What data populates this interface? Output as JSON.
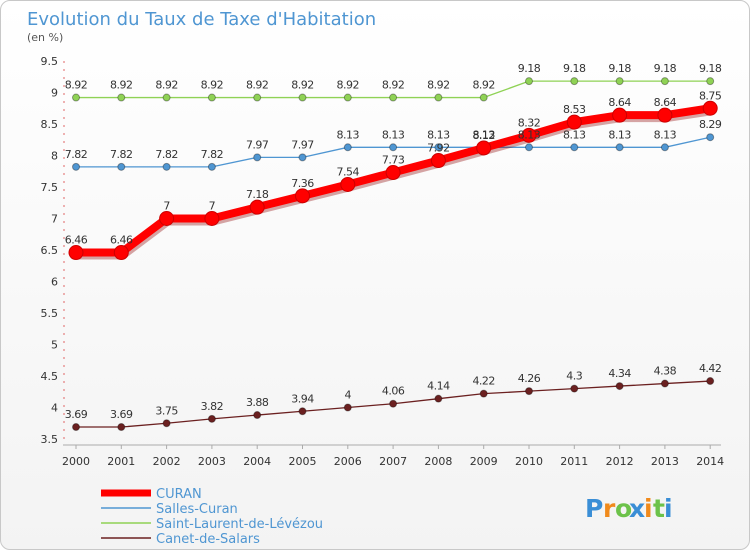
{
  "chart_data": {
    "type": "line",
    "title": "Evolution du Taux de Taxe d'Habitation",
    "subtitle": "(en %)",
    "x": [
      "2000",
      "2001",
      "2002",
      "2003",
      "2004",
      "2005",
      "2006",
      "2007",
      "2008",
      "2009",
      "2010",
      "2011",
      "2012",
      "2013",
      "2014"
    ],
    "ylim": [
      3.5,
      9.5
    ],
    "yticks": [
      "3.5",
      "4",
      "4.5",
      "5",
      "5.5",
      "6",
      "6.5",
      "7",
      "7.5",
      "8",
      "8.5",
      "9",
      "9.5"
    ],
    "grid": false,
    "legend_position": "bottom-left",
    "series": [
      {
        "name": "CURAN",
        "color": "#ff0000",
        "label_color": "#333333",
        "values": [
          6.46,
          6.46,
          7,
          7,
          7.18,
          7.36,
          7.54,
          7.73,
          7.92,
          8.12,
          8.32,
          8.53,
          8.64,
          8.64,
          8.75
        ],
        "labels": [
          "6.46",
          "6.46",
          "7",
          "7",
          "7.18",
          "7.36",
          "7.54",
          "7.73",
          "7.92",
          "8.12",
          "8.32",
          "8.53",
          "8.64",
          "8.64",
          "8.75"
        ]
      },
      {
        "name": "Salles-Curan",
        "color": "#4f96d2",
        "label_color": "#333333",
        "values": [
          7.82,
          7.82,
          7.82,
          7.82,
          7.97,
          7.97,
          8.13,
          8.13,
          8.13,
          8.13,
          8.13,
          8.13,
          8.13,
          8.13,
          8.29
        ],
        "labels": [
          "7.82",
          "7.82",
          "7.82",
          "7.82",
          "7.97",
          "7.97",
          "8.13",
          "8.13",
          "8.13",
          "8.13",
          "8.13",
          "8.13",
          "8.13",
          "8.13",
          "8.29"
        ]
      },
      {
        "name": "Saint-Laurent-de-Lévézou",
        "color": "#8fd255",
        "label_color": "#333333",
        "values": [
          8.92,
          8.92,
          8.92,
          8.92,
          8.92,
          8.92,
          8.92,
          8.92,
          8.92,
          8.92,
          9.18,
          9.18,
          9.18,
          9.18,
          9.18
        ],
        "labels": [
          "8.92",
          "8.92",
          "8.92",
          "8.92",
          "8.92",
          "8.92",
          "8.92",
          "8.92",
          "8.92",
          "8.92",
          "9.18",
          "9.18",
          "9.18",
          "9.18",
          "9.18"
        ]
      },
      {
        "name": "Canet-de-Salars",
        "color": "#6b2020",
        "label_color": "#333333",
        "values": [
          3.69,
          3.69,
          3.75,
          3.82,
          3.88,
          3.94,
          4,
          4.06,
          4.14,
          4.22,
          4.26,
          4.3,
          4.34,
          4.38,
          4.42
        ],
        "labels": [
          "3.69",
          "3.69",
          "3.75",
          "3.82",
          "3.88",
          "3.94",
          "4",
          "4.06",
          "4.14",
          "4.22",
          "4.26",
          "4.3",
          "4.34",
          "4.38",
          "4.42"
        ]
      }
    ]
  },
  "brand": {
    "text": "Proxiti",
    "letters": [
      "P",
      "r",
      "o",
      "x",
      "i",
      "t",
      "i"
    ],
    "colors": [
      "#3a8ed6",
      "#f08a1c",
      "#6cc24a",
      "#3a8ed6",
      "#f08a1c",
      "#6cc24a",
      "#3a8ed6"
    ]
  }
}
